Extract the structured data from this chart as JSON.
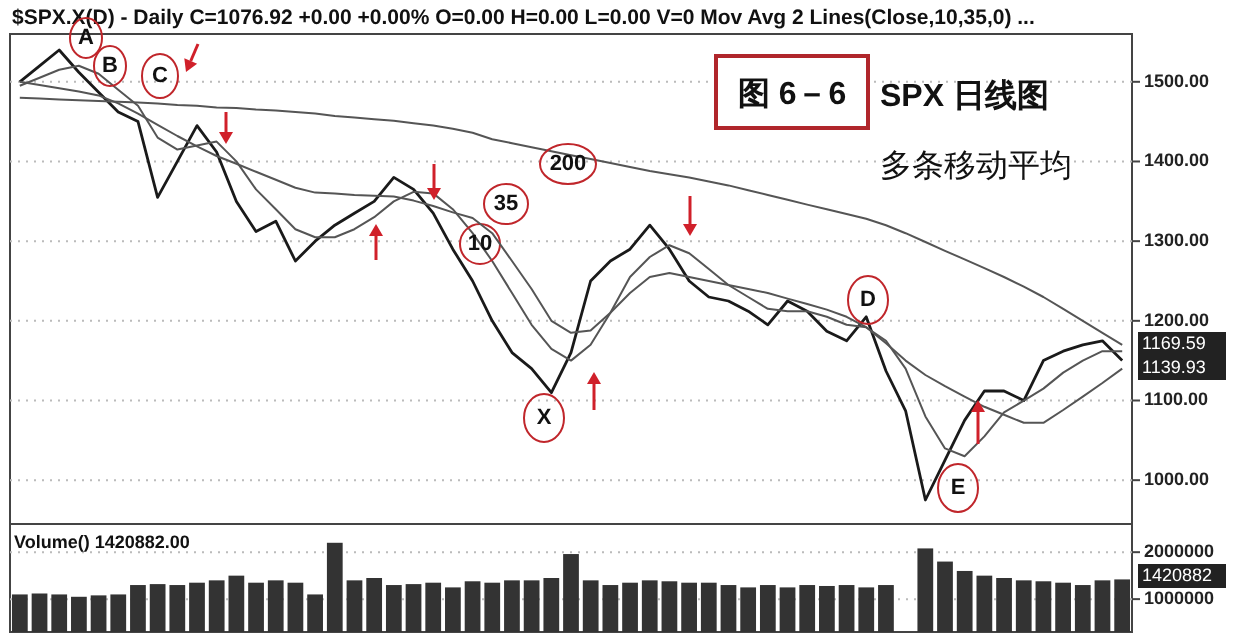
{
  "chart_data": [
    {
      "type": "line",
      "title": "图 6－6",
      "subtitle": "SPX 日线图",
      "annotations": [
        "$SPX.X(D) - Daily C=1076.92 +0.00 +0.00% O=0.00 H=0.00 L=0.00 V=0 Mov Avg 2 Lines(Close,10,35,0) ...",
        "多条移动平均",
        "A",
        "B",
        "C",
        "D",
        "E",
        "X",
        "1169.59",
        "1139.93"
      ],
      "categories": [
        null,
        null,
        null,
        null,
        null,
        null,
        null,
        null,
        null,
        null,
        null,
        null,
        null,
        null,
        null,
        null,
        null,
        null,
        null,
        null,
        null,
        null,
        null,
        null,
        null,
        null,
        null,
        null,
        null,
        null,
        null,
        null,
        null,
        null,
        null,
        null,
        null,
        null,
        null,
        null,
        null,
        null,
        null,
        null,
        null,
        null,
        null,
        null,
        null,
        null,
        null,
        null,
        null,
        null,
        null,
        null,
        null
      ],
      "series": [
        {
          "color": "#1a1a1a",
          "values": [
            1500,
            1520,
            1540,
            1512,
            1487,
            1462,
            1450,
            1355,
            1400,
            1445,
            1412,
            1350,
            1312,
            1325,
            1275,
            1300,
            1320,
            1335,
            1350,
            1380,
            1365,
            1335,
            1290,
            1250,
            1200,
            1160,
            1140,
            1110,
            1160,
            1250,
            1275,
            1290,
            1320,
            1290,
            1250,
            1230,
            1225,
            1212,
            1195,
            1225,
            1212,
            1187,
            1175,
            1205,
            1137,
            1087,
            975,
            1025,
            1075,
            1112,
            1112,
            1100,
            1150,
            1162,
            1170,
            1175,
            1150
          ]
        },
        {
          "name": "10",
          "color": "#555555",
          "values": [
            1495,
            1505,
            1515,
            1520,
            1510,
            1490,
            1470,
            1430,
            1415,
            1420,
            1425,
            1400,
            1365,
            1340,
            1315,
            1305,
            1305,
            1315,
            1330,
            1350,
            1362,
            1360,
            1340,
            1310,
            1275,
            1235,
            1195,
            1165,
            1150,
            1170,
            1210,
            1255,
            1280,
            1295,
            1285,
            1265,
            1245,
            1230,
            1215,
            1212,
            1212,
            1205,
            1195,
            1192,
            1175,
            1140,
            1080,
            1040,
            1030,
            1055,
            1085,
            1100,
            1115,
            1135,
            1150,
            1162,
            1162
          ]
        },
        {
          "name": "35",
          "color": "#555555",
          "values": [
            1500,
            1496,
            1492,
            1488,
            1483,
            1473,
            1460,
            1446,
            1432,
            1419,
            1407,
            1397,
            1387,
            1377,
            1367,
            1361,
            1360,
            1358,
            1357,
            1356,
            1351,
            1344,
            1336,
            1329,
            1310,
            1275,
            1240,
            1200,
            1185,
            1188,
            1210,
            1235,
            1255,
            1260,
            1255,
            1250,
            1245,
            1240,
            1235,
            1228,
            1221,
            1214,
            1205,
            1192,
            1172,
            1150,
            1132,
            1118,
            1105,
            1092,
            1082,
            1072,
            1072,
            1088,
            1105,
            1122,
            1140
          ]
        },
        {
          "name": "200",
          "color": "#555555",
          "values": [
            1480,
            1479,
            1478,
            1477,
            1476,
            1475,
            1474,
            1473,
            1471,
            1470,
            1468,
            1467,
            1465,
            1464,
            1462,
            1460,
            1457,
            1455,
            1453,
            1451,
            1448,
            1445,
            1441,
            1436,
            1428,
            1423,
            1418,
            1413,
            1408,
            1403,
            1398,
            1393,
            1388,
            1384,
            1380,
            1375,
            1370,
            1364,
            1358,
            1352,
            1346,
            1340,
            1334,
            1328,
            1320,
            1310,
            1299,
            1288,
            1277,
            1266,
            1255,
            1243,
            1230,
            1215,
            1200,
            1185,
            1170
          ]
        }
      ],
      "ylim": [
        945,
        1560
      ],
      "yticks": [
        {
          "value": 1000,
          "label": "1000.00"
        },
        {
          "value": 1100,
          "label": "1100.00"
        },
        {
          "value": 1200,
          "label": "1200.00"
        },
        {
          "value": 1300,
          "label": "1300.00"
        },
        {
          "value": 1400,
          "label": "1400.00"
        },
        {
          "value": 1500,
          "label": "1500.00"
        }
      ],
      "grid": "y",
      "tick_labels": "y"
    },
    {
      "type": "bar",
      "annotations": [
        "Volume() 1420882.00",
        "1420882"
      ],
      "categories": [
        null,
        null,
        null,
        null,
        null,
        null,
        null,
        null,
        null,
        null,
        null,
        null,
        null,
        null,
        null,
        null,
        null,
        null,
        null,
        null,
        null,
        null,
        null,
        null,
        null,
        null,
        null,
        null,
        null,
        null,
        null,
        null,
        null,
        null,
        null,
        null,
        null,
        null,
        null,
        null,
        null,
        null,
        null,
        null,
        null,
        null,
        null,
        null,
        null,
        null,
        null,
        null,
        null,
        null,
        null,
        null,
        null
      ],
      "color": "#333333",
      "values": [
        1100000,
        1120000,
        1100000,
        1050000,
        1080000,
        1100000,
        1300000,
        1320000,
        1300000,
        1350000,
        1400000,
        1500000,
        1350000,
        1400000,
        1350000,
        1100000,
        2200000,
        1400000,
        1450000,
        1300000,
        1320000,
        1350000,
        1250000,
        1380000,
        1350000,
        1400000,
        1400000,
        1450000,
        1960000,
        1400000,
        1300000,
        1350000,
        1400000,
        1380000,
        1350000,
        1350000,
        1300000,
        1250000,
        1300000,
        1250000,
        1300000,
        1280000,
        1300000,
        1250000,
        1300000,
        null,
        2080000,
        1800000,
        1600000,
        1500000,
        1450000,
        1400000,
        1380000,
        1350000,
        1300000,
        1400000,
        1420000
      ],
      "ylim": [
        300000,
        2600000
      ],
      "yticks": [
        1000000,
        2000000
      ],
      "grid": "y",
      "tick_labels": "y"
    }
  ]
}
